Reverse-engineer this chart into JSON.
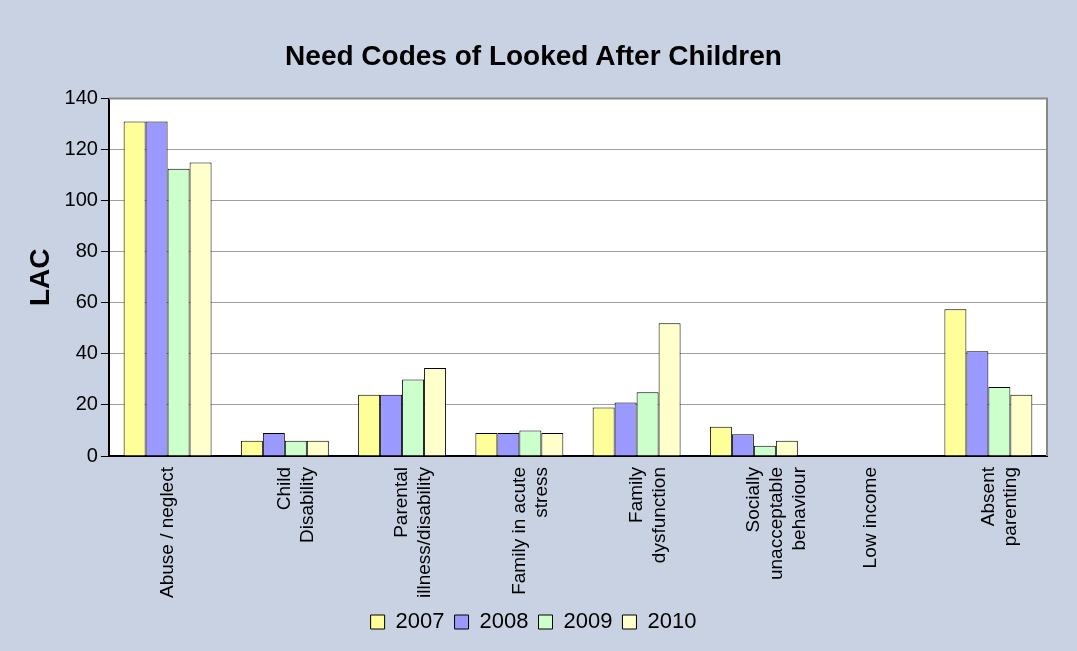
{
  "chart_data": {
    "type": "bar",
    "title": "Need Codes of Looked After Children",
    "ylabel": "LAC",
    "categories": [
      "Abuse / neglect",
      "Child Disability",
      "Parental illness/disability",
      "Family in acute stress",
      "Family dysfunction",
      "Socially unacceptable behaviour",
      "Low income",
      "Absent parenting"
    ],
    "series": [
      {
        "name": "2007",
        "color": "#ffff99",
        "values": [
          131,
          6,
          24,
          9,
          19,
          11.5,
          0,
          57.5
        ]
      },
      {
        "name": "2008",
        "color": "#9999ff",
        "values": [
          131,
          9,
          24,
          9,
          21,
          8.5,
          0,
          41
        ]
      },
      {
        "name": "2009",
        "color": "#ccffcc",
        "values": [
          112.5,
          6,
          30,
          10,
          25,
          4,
          0,
          27
        ]
      },
      {
        "name": "2010",
        "color": "#ffffcc",
        "values": [
          115,
          6,
          34.5,
          9,
          52,
          6,
          0,
          24
        ]
      }
    ],
    "ylim": [
      0,
      140
    ],
    "yticks": [
      0,
      20,
      40,
      60,
      80,
      100,
      120,
      140
    ],
    "grid": "y",
    "legend": "bottom"
  }
}
